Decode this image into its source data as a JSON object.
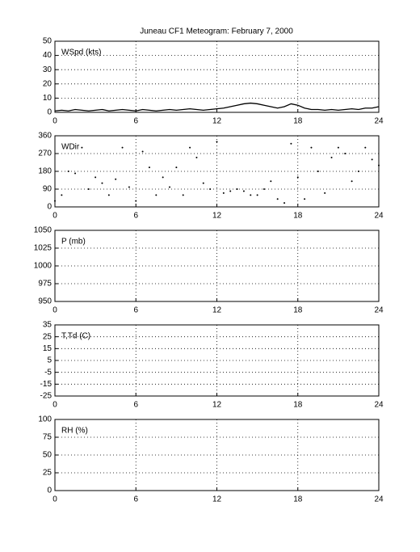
{
  "chart_data": [
    {
      "type": "line",
      "title": "Juneau CF1 Meteogram:  February  7, 2000",
      "label": "WSpd (kts)",
      "color": "#000000",
      "x": [
        0,
        0.5,
        1,
        1.5,
        2,
        2.5,
        3,
        3.5,
        4,
        4.5,
        5,
        5.5,
        6,
        6.5,
        7,
        7.5,
        8,
        8.5,
        9,
        9.5,
        10,
        10.5,
        11,
        11.5,
        12,
        12.5,
        13,
        13.5,
        14,
        14.5,
        15,
        15.5,
        16,
        16.5,
        17,
        17.5,
        18,
        18.5,
        19,
        19.5,
        20,
        20.5,
        21,
        21.5,
        22,
        22.5,
        23,
        23.5,
        24
      ],
      "values": [
        1,
        1.5,
        1,
        2,
        1.5,
        1,
        1.5,
        2,
        1,
        1.5,
        2,
        1.5,
        1,
        2,
        1.5,
        1,
        1.5,
        2,
        1.5,
        2,
        2.5,
        2,
        1.5,
        2,
        2.5,
        3,
        4,
        5,
        6,
        6.5,
        6,
        5,
        4,
        3,
        4,
        6,
        5,
        3,
        2,
        2,
        1.5,
        2,
        1.5,
        2,
        2.5,
        2,
        3,
        3,
        4
      ],
      "xlim": [
        0,
        24
      ],
      "xticks": [
        0,
        6,
        12,
        18,
        24
      ],
      "ylim": [
        0,
        50
      ],
      "yticks": [
        0,
        10,
        20,
        30,
        40,
        50
      ],
      "grid": true
    },
    {
      "type": "scatter",
      "label": "WDir",
      "color": "#000000",
      "x": [
        0,
        0.5,
        1,
        1.5,
        2,
        2.5,
        3,
        3.5,
        4,
        4.5,
        5,
        5.5,
        6,
        6.5,
        7,
        7.5,
        8,
        8.5,
        9,
        9.5,
        10,
        10.5,
        11,
        11.5,
        12,
        12.5,
        13,
        13.5,
        14,
        14.5,
        15,
        15.5,
        16,
        16.5,
        17,
        17.5,
        18,
        18.5,
        19,
        19.5,
        20,
        20.5,
        21,
        21.5,
        22,
        22.5,
        23,
        23.5,
        24
      ],
      "values": [
        30,
        60,
        180,
        170,
        300,
        90,
        150,
        120,
        60,
        140,
        300,
        100,
        30,
        280,
        200,
        60,
        150,
        100,
        200,
        60,
        300,
        250,
        120,
        90,
        330,
        70,
        80,
        90,
        80,
        60,
        60,
        90,
        130,
        40,
        20,
        320,
        150,
        40,
        300,
        180,
        70,
        250,
        300,
        270,
        130,
        180,
        300,
        240,
        210
      ],
      "xlim": [
        0,
        24
      ],
      "xticks": [
        0,
        6,
        12,
        18,
        24
      ],
      "ylim": [
        0,
        360
      ],
      "yticks": [
        0,
        90,
        180,
        270,
        360
      ],
      "grid": true
    },
    {
      "type": "line",
      "label": "P (mb)",
      "xlim": [
        0,
        24
      ],
      "xticks": [
        0,
        6,
        12,
        18,
        24
      ],
      "ylim": [
        950,
        1050
      ],
      "yticks": [
        950,
        975,
        1000,
        1025,
        1050
      ],
      "grid": true
    },
    {
      "type": "line",
      "label": "T,Td (C)",
      "xlim": [
        0,
        24
      ],
      "xticks": [
        0,
        6,
        12,
        18,
        24
      ],
      "ylim": [
        -25,
        35
      ],
      "yticks": [
        -25,
        -15,
        -5,
        5,
        15,
        25,
        35
      ],
      "grid": true
    },
    {
      "type": "line",
      "label": "RH (%)",
      "xlim": [
        0,
        24
      ],
      "xticks": [
        0,
        6,
        12,
        18,
        24
      ],
      "ylim": [
        0,
        100
      ],
      "yticks": [
        0,
        25,
        50,
        75,
        100
      ],
      "grid": true
    }
  ]
}
